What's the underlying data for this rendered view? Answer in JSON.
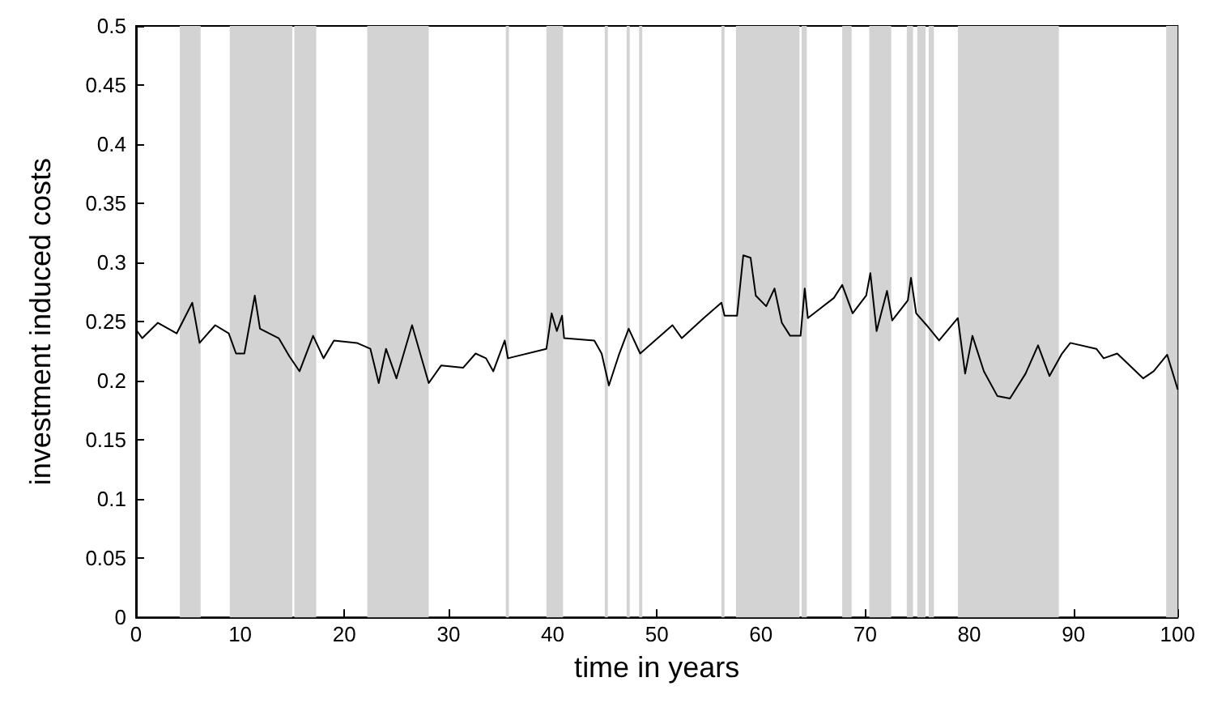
{
  "chart_data": {
    "type": "line",
    "xlabel": "time in years",
    "ylabel": "investment induced costs",
    "xlim": [
      0,
      100
    ],
    "xticks": [
      0,
      10,
      20,
      30,
      40,
      50,
      60,
      70,
      80,
      90,
      100
    ],
    "ylim": [
      0,
      0.5
    ],
    "yticks": [
      0,
      0.05,
      0.1,
      0.15,
      0.2,
      0.25,
      0.3,
      0.35,
      0.4,
      0.45,
      0.5
    ],
    "grid": false,
    "marker": "none",
    "line_style": "solid",
    "series": [
      {
        "color": "#000000",
        "x": [
          0.1,
          0.6,
          2.1,
          3.9,
          5.4,
          6.1,
          7.6,
          8.9,
          9.6,
          10.4,
          11.4,
          11.9,
          13.7,
          14.7,
          15.7,
          17.0,
          18.0,
          19.0,
          21.2,
          22.5,
          23.3,
          24.0,
          25.0,
          26.5,
          28.1,
          29.3,
          31.4,
          32.6,
          33.6,
          34.3,
          35.4,
          35.7,
          39.4,
          39.9,
          40.4,
          40.9,
          41.1,
          44.0,
          44.7,
          45.4,
          46.4,
          47.3,
          48.4,
          51.5,
          52.4,
          54.5,
          56.2,
          56.5,
          57.7,
          58.3,
          59.0,
          59.5,
          60.5,
          61.3,
          62.0,
          62.8,
          63.8,
          64.2,
          64.5,
          67.0,
          67.8,
          68.8,
          70.1,
          70.5,
          71.1,
          72.1,
          72.6,
          74.1,
          74.4,
          74.9,
          75.9,
          77.1,
          78.9,
          79.6,
          80.3,
          81.4,
          82.7,
          83.9,
          85.4,
          86.6,
          87.7,
          88.9,
          89.7,
          92.2,
          92.9,
          94.2,
          96.7,
          97.7,
          99.0,
          100.0
        ],
        "values": [
          0.242,
          0.236,
          0.249,
          0.24,
          0.266,
          0.232,
          0.247,
          0.24,
          0.223,
          0.223,
          0.272,
          0.244,
          0.236,
          0.221,
          0.208,
          0.238,
          0.219,
          0.234,
          0.232,
          0.227,
          0.198,
          0.227,
          0.202,
          0.247,
          0.198,
          0.213,
          0.211,
          0.223,
          0.219,
          0.208,
          0.234,
          0.219,
          0.227,
          0.257,
          0.242,
          0.255,
          0.236,
          0.234,
          0.223,
          0.196,
          0.223,
          0.244,
          0.223,
          0.247,
          0.236,
          0.253,
          0.266,
          0.255,
          0.255,
          0.306,
          0.304,
          0.272,
          0.263,
          0.278,
          0.249,
          0.238,
          0.238,
          0.278,
          0.253,
          0.27,
          0.281,
          0.257,
          0.272,
          0.291,
          0.242,
          0.276,
          0.251,
          0.268,
          0.287,
          0.257,
          0.247,
          0.234,
          0.253,
          0.206,
          0.238,
          0.208,
          0.187,
          0.185,
          0.206,
          0.23,
          0.204,
          0.223,
          0.232,
          0.227,
          0.219,
          0.223,
          0.202,
          0.208,
          0.222,
          0.193
        ]
      }
    ],
    "bands": [
      {
        "axis": "x",
        "from": 4.2,
        "to": 6.2,
        "color": "#d3d3d3"
      },
      {
        "axis": "x",
        "from": 9.0,
        "to": 15.0,
        "color": "#d3d3d3"
      },
      {
        "axis": "x",
        "from": 15.2,
        "to": 17.3,
        "color": "#d3d3d3"
      },
      {
        "axis": "x",
        "from": 22.2,
        "to": 28.1,
        "color": "#d3d3d3"
      },
      {
        "axis": "x",
        "from": 35.5,
        "to": 35.8,
        "color": "#d3d3d3"
      },
      {
        "axis": "x",
        "from": 39.4,
        "to": 41.0,
        "color": "#d3d3d3"
      },
      {
        "axis": "x",
        "from": 45.0,
        "to": 45.3,
        "color": "#d3d3d3"
      },
      {
        "axis": "x",
        "from": 47.1,
        "to": 47.4,
        "color": "#d3d3d3"
      },
      {
        "axis": "x",
        "from": 48.3,
        "to": 48.6,
        "color": "#d3d3d3"
      },
      {
        "axis": "x",
        "from": 56.2,
        "to": 56.5,
        "color": "#d3d3d3"
      },
      {
        "axis": "x",
        "from": 57.6,
        "to": 63.7,
        "color": "#d3d3d3"
      },
      {
        "axis": "x",
        "from": 63.9,
        "to": 64.4,
        "color": "#d3d3d3"
      },
      {
        "axis": "x",
        "from": 67.8,
        "to": 68.7,
        "color": "#d3d3d3"
      },
      {
        "axis": "x",
        "from": 70.4,
        "to": 72.5,
        "color": "#d3d3d3"
      },
      {
        "axis": "x",
        "from": 74.0,
        "to": 74.6,
        "color": "#d3d3d3"
      },
      {
        "axis": "x",
        "from": 75.0,
        "to": 75.8,
        "color": "#d3d3d3"
      },
      {
        "axis": "x",
        "from": 76.1,
        "to": 76.6,
        "color": "#d3d3d3"
      },
      {
        "axis": "x",
        "from": 78.9,
        "to": 88.6,
        "color": "#d3d3d3"
      },
      {
        "axis": "x",
        "from": 98.9,
        "to": 100,
        "color": "#d3d3d3"
      }
    ]
  }
}
